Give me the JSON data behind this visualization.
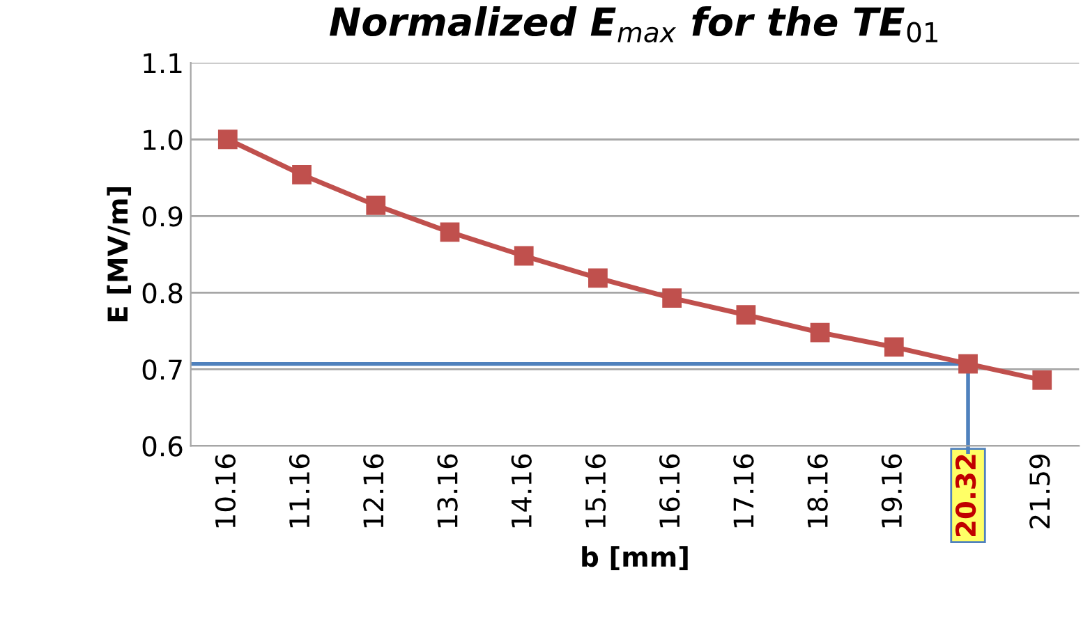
{
  "chart_data": {
    "type": "line",
    "title": "Normalized E$_{max}$ for the TE$_{01}$",
    "xlabel": "b [mm]",
    "ylabel": "E [MV/m]",
    "categories": [
      "10.16",
      "11.16",
      "12.16",
      "13.16",
      "14.16",
      "15.16",
      "16.16",
      "17.16",
      "18.16",
      "19.16",
      "20.32",
      "21.59"
    ],
    "series": [
      {
        "color": "#c0504d",
        "values": [
          1.0,
          0.954,
          0.914,
          0.879,
          0.848,
          0.819,
          0.793,
          0.771,
          0.748,
          0.729,
          0.707,
          0.686
        ]
      }
    ],
    "ylim": [
      0.6,
      1.1
    ],
    "yticks": [
      0.6,
      0.7,
      0.8,
      0.9,
      {
        "value": 1.0,
        "label": "1.0"
      },
      1.1
    ],
    "ref_lines": [
      {
        "axis": "y",
        "value": 0.707,
        "color": "#4f81bd"
      },
      {
        "axis": "x",
        "value": "20.32",
        "color": "#4f81bd"
      }
    ],
    "grid": "y",
    "marker": "square",
    "line_style": "solid",
    "legend": false
  }
}
